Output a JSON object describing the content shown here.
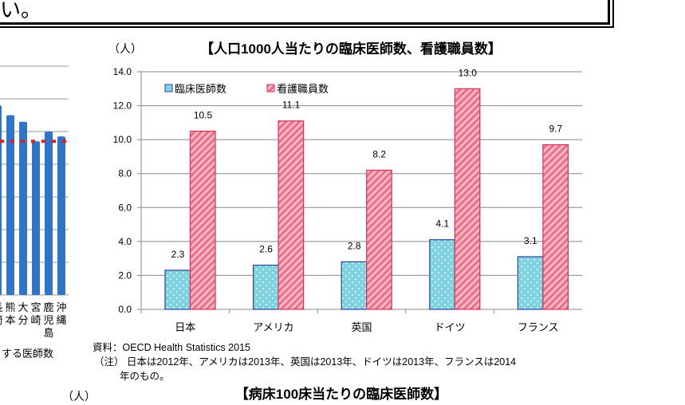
{
  "top_text": "い。",
  "chart_data": [
    {
      "type": "bar",
      "title": "【人口1000人当たりの臨床医師数、看護職員数】",
      "unit_label": "（人）",
      "categories": [
        "日本",
        "アメリカ",
        "英国",
        "ドイツ",
        "フランス"
      ],
      "series": [
        {
          "name": "臨床医師数",
          "values": [
            2.3,
            2.6,
            2.8,
            4.1,
            3.1
          ],
          "color": "#7fd3e0",
          "pattern": "dots"
        },
        {
          "name": "看護職員数",
          "values": [
            10.5,
            11.1,
            8.2,
            13.0,
            9.7
          ],
          "color": "#f29aab",
          "pattern": "diagonal-stripes"
        }
      ],
      "data_labels": [
        [
          "2.3",
          "2.6",
          "2.8",
          "4.1",
          "3.1"
        ],
        [
          "10.5",
          "11.1",
          "8.2",
          "13.0",
          "9.7"
        ]
      ],
      "ylim": [
        0,
        14
      ],
      "yticks": [
        "0.0",
        "2.0",
        "4.0",
        "6.0",
        "8.0",
        "10.0",
        "12.0",
        "14.0"
      ],
      "grid": true,
      "legend": "top-left"
    },
    {
      "type": "bar",
      "partial": true,
      "categories": [
        "長崎",
        "熊本",
        "大分",
        "宮崎",
        "鹿児島",
        "沖縄"
      ],
      "category_labels": [
        [
          "長",
          "崎"
        ],
        [
          "熊",
          "本"
        ],
        [
          "大",
          "分"
        ],
        [
          "宮",
          "崎"
        ],
        [
          "鹿",
          "児",
          "島"
        ],
        [
          "沖",
          "縄"
        ]
      ],
      "values": [
        5.8,
        5.5,
        5.3,
        4.7,
        5.0,
        4.85
      ],
      "reference_line": 4.7,
      "xlabel": "する医師数",
      "color": "#2e75c8",
      "reference_color": "#e02020"
    }
  ],
  "notes": {
    "source": "資料：OECD  Health  Statistics  2015",
    "note_line1": "（注）  日本は2012年、アメリカは2013年、英国は2013年、ドイツは2013年、フランスは2014",
    "note_line2": "年のもの。"
  },
  "next_chart": {
    "unit_label": "（人）",
    "title": "【病床100床当たりの臨床医師数】"
  }
}
